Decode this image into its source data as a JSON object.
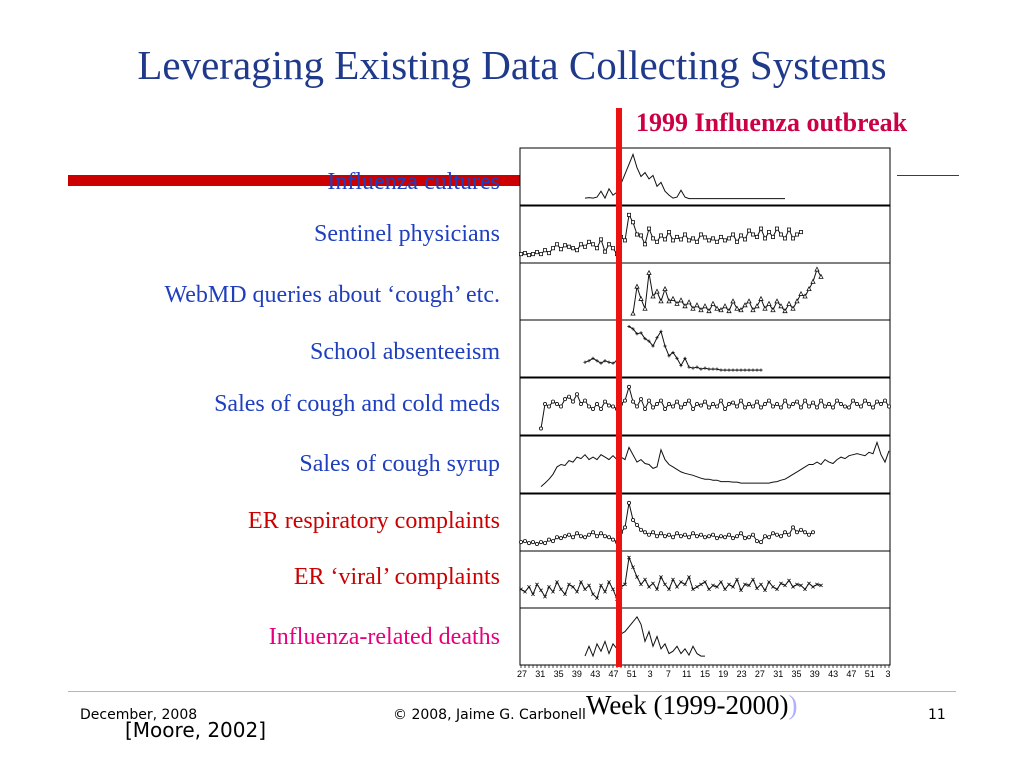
{
  "slide": {
    "title": "Leveraging Existing Data Collecting Systems",
    "outbreak_label": "1999 Influenza outbreak",
    "footer_date": "December, 2008",
    "footer_copyright": "© 2008, Jaime G. Carbonell",
    "slide_number": "11",
    "citation": "[Moore, 2002]",
    "colors": {
      "title": "#1f3a8a",
      "label_blue": "#1f3fbf",
      "label_red": "#cc0000",
      "label_magenta": "#e6007e",
      "outbreak_line": "#ee1111",
      "accent": "#cc0000"
    }
  },
  "chart_data": {
    "type": "line",
    "xlabel": "Week (1999-2000)",
    "x_ticks": [
      "27",
      "31",
      "35",
      "39",
      "43",
      "47",
      "51",
      "3",
      "7",
      "11",
      "15",
      "19",
      "23",
      "27",
      "31",
      "35",
      "39",
      "43",
      "47",
      "51",
      "3"
    ],
    "outbreak_week_index": 24.5,
    "x_count": 93,
    "series": [
      {
        "name": "Influenza cultures",
        "color_key": "label_blue",
        "markers": "none",
        "values": [
          null,
          null,
          null,
          null,
          null,
          null,
          null,
          null,
          null,
          null,
          null,
          null,
          null,
          null,
          null,
          null,
          0.06,
          0.07,
          0.06,
          0.08,
          0.2,
          0.06,
          0.25,
          0.12,
          0.18,
          0.35,
          0.55,
          0.75,
          0.95,
          0.68,
          0.5,
          0.58,
          0.45,
          0.52,
          0.3,
          0.38,
          0.2,
          0.12,
          0.06,
          0.08,
          0.22,
          0.08,
          0.05,
          0.05,
          0.05,
          0.05,
          0.05,
          0.05,
          0.05,
          0.05,
          0.05,
          0.05,
          0.05,
          0.05,
          0.05,
          0.05,
          0.05,
          0.05,
          0.05,
          0.05,
          0.05,
          0.05,
          0.05,
          0.05,
          0.05,
          0.05,
          0.05
        ]
      },
      {
        "name": "Sentinel physicians",
        "color_key": "label_blue",
        "markers": "square",
        "values": [
          0.1,
          0.12,
          0.08,
          0.1,
          0.14,
          0.1,
          0.18,
          0.12,
          0.22,
          0.3,
          0.2,
          0.28,
          0.25,
          0.22,
          0.18,
          0.3,
          0.25,
          0.35,
          0.3,
          0.22,
          0.4,
          0.15,
          0.3,
          0.22,
          0.1,
          0.45,
          0.38,
          0.9,
          0.75,
          0.5,
          0.48,
          0.3,
          0.62,
          0.42,
          0.35,
          0.48,
          0.4,
          0.55,
          0.38,
          0.45,
          0.4,
          0.5,
          0.38,
          0.42,
          0.35,
          0.5,
          0.44,
          0.38,
          0.42,
          0.35,
          0.45,
          0.38,
          0.42,
          0.5,
          0.35,
          0.48,
          0.4,
          0.58,
          0.5,
          0.45,
          0.62,
          0.42,
          0.55,
          0.45,
          0.62,
          0.5,
          0.42,
          0.6,
          0.42,
          0.5,
          0.55
        ]
      },
      {
        "name": "WebMD queries about ‘cough’ etc.",
        "color_key": "label_blue",
        "markers": "triangle",
        "values": [
          null,
          null,
          null,
          null,
          null,
          null,
          null,
          null,
          null,
          null,
          null,
          null,
          null,
          null,
          null,
          null,
          null,
          null,
          null,
          null,
          null,
          null,
          null,
          null,
          null,
          null,
          null,
          null,
          0.05,
          0.6,
          0.35,
          0.15,
          0.88,
          0.4,
          0.5,
          0.3,
          0.55,
          0.3,
          0.35,
          0.25,
          0.32,
          0.2,
          0.28,
          0.15,
          0.22,
          0.12,
          0.2,
          0.1,
          0.25,
          0.15,
          0.12,
          0.2,
          0.1,
          0.3,
          0.15,
          0.12,
          0.22,
          0.3,
          0.12,
          0.2,
          0.35,
          0.15,
          0.25,
          0.12,
          0.3,
          0.2,
          0.1,
          0.25,
          0.15,
          0.3,
          0.45,
          0.4,
          0.55,
          0.7,
          0.95,
          0.8
        ]
      },
      {
        "name": "School absenteeism",
        "color_key": "label_blue",
        "markers": "plus",
        "values": [
          null,
          null,
          null,
          null,
          null,
          null,
          null,
          null,
          null,
          null,
          null,
          null,
          null,
          null,
          null,
          null,
          0.22,
          0.25,
          0.3,
          0.25,
          0.2,
          0.25,
          0.22,
          0.2,
          0.25,
          null,
          null,
          0.95,
          0.9,
          0.8,
          0.82,
          0.7,
          0.65,
          0.55,
          0.72,
          0.85,
          0.55,
          0.35,
          0.42,
          0.3,
          0.15,
          0.3,
          0.12,
          0.1,
          0.12,
          0.08,
          0.1,
          0.08,
          0.08,
          0.08,
          0.06,
          0.06,
          0.06,
          0.06,
          0.06,
          0.06,
          0.06,
          0.06,
          0.06,
          0.06,
          0.06
        ]
      },
      {
        "name": "Sales of cough and cold meds",
        "color_key": "label_blue",
        "markers": "circle",
        "values": [
          null,
          null,
          null,
          null,
          null,
          0.05,
          0.55,
          0.5,
          0.6,
          0.55,
          0.5,
          0.65,
          0.7,
          0.6,
          0.75,
          0.55,
          0.62,
          0.5,
          0.45,
          0.55,
          0.45,
          0.6,
          0.52,
          0.5,
          0.45,
          0.55,
          0.62,
          0.9,
          0.6,
          0.5,
          0.65,
          0.45,
          0.62,
          0.48,
          0.55,
          0.62,
          0.45,
          0.55,
          0.5,
          0.6,
          0.48,
          0.55,
          0.62,
          0.45,
          0.55,
          0.52,
          0.6,
          0.48,
          0.55,
          0.5,
          0.62,
          0.45,
          0.55,
          0.58,
          0.5,
          0.62,
          0.48,
          0.55,
          0.5,
          0.6,
          0.48,
          0.55,
          0.62,
          0.5,
          0.55,
          0.48,
          0.62,
          0.5,
          0.55,
          0.6,
          0.48,
          0.62,
          0.5,
          0.58,
          0.48,
          0.62,
          0.5,
          0.55,
          0.48,
          0.62,
          0.55,
          0.5,
          0.48,
          0.62,
          0.55,
          0.5,
          0.62,
          0.55,
          0.48,
          0.6,
          0.55,
          0.62,
          0.5
        ]
      },
      {
        "name": "Sales of cough syrup",
        "color_key": "label_blue",
        "markers": "none",
        "values": [
          null,
          null,
          null,
          null,
          null,
          0.05,
          0.12,
          0.2,
          0.3,
          0.45,
          0.5,
          0.48,
          0.58,
          0.55,
          0.65,
          0.62,
          0.7,
          0.6,
          0.65,
          0.6,
          0.7,
          0.65,
          0.6,
          0.68,
          0.6,
          0.65,
          0.6,
          0.85,
          0.7,
          0.55,
          0.6,
          0.52,
          0.5,
          0.42,
          0.45,
          0.8,
          0.6,
          0.5,
          0.45,
          0.4,
          0.35,
          0.32,
          0.3,
          0.28,
          0.25,
          0.22,
          0.2,
          0.2,
          0.18,
          0.18,
          0.15,
          0.15,
          0.15,
          0.14,
          0.14,
          0.12,
          0.12,
          0.12,
          0.12,
          0.12,
          0.12,
          0.12,
          0.12,
          0.14,
          0.15,
          0.18,
          0.2,
          0.25,
          0.3,
          0.35,
          0.4,
          0.45,
          0.5,
          0.5,
          0.55,
          0.5,
          0.6,
          0.55,
          0.52,
          0.6,
          0.65,
          0.62,
          0.68,
          0.7,
          0.72,
          0.7,
          0.68,
          0.75,
          0.72,
          0.95,
          0.7,
          0.55,
          0.78
        ]
      },
      {
        "name": "ER respiratory complaints",
        "color_key": "label_red",
        "markers": "circle",
        "values": [
          0.1,
          0.12,
          0.08,
          0.1,
          0.06,
          0.1,
          0.08,
          0.15,
          0.12,
          0.2,
          0.18,
          0.22,
          0.25,
          0.2,
          0.28,
          0.22,
          0.2,
          0.25,
          0.3,
          0.22,
          0.28,
          0.22,
          0.2,
          0.15,
          0.1,
          0.3,
          0.4,
          0.9,
          0.55,
          0.45,
          0.35,
          0.3,
          0.25,
          0.3,
          0.22,
          0.28,
          0.22,
          0.25,
          0.2,
          0.28,
          0.22,
          0.25,
          0.2,
          0.28,
          0.22,
          0.25,
          0.2,
          0.22,
          0.25,
          0.18,
          0.22,
          0.2,
          0.25,
          0.18,
          0.22,
          0.28,
          0.18,
          0.2,
          0.25,
          0.12,
          0.1,
          0.22,
          0.2,
          0.28,
          0.25,
          0.22,
          0.3,
          0.25,
          0.4,
          0.3,
          0.35,
          0.3,
          0.25,
          0.3
        ]
      },
      {
        "name": "ER ‘viral’ complaints",
        "color_key": "label_red",
        "markers": "star",
        "values": [
          0.3,
          0.25,
          0.35,
          0.2,
          0.4,
          0.28,
          0.15,
          0.35,
          0.25,
          0.45,
          0.3,
          0.2,
          0.4,
          0.35,
          0.25,
          0.45,
          0.3,
          0.38,
          0.2,
          0.12,
          0.38,
          0.25,
          0.45,
          0.3,
          0.1,
          0.35,
          0.4,
          0.95,
          0.75,
          0.55,
          0.4,
          0.5,
          0.35,
          0.42,
          0.3,
          0.55,
          0.4,
          0.3,
          0.5,
          0.35,
          0.45,
          0.4,
          0.55,
          0.3,
          0.35,
          0.4,
          0.45,
          0.3,
          0.38,
          0.35,
          0.45,
          0.3,
          0.4,
          0.35,
          0.5,
          0.28,
          0.4,
          0.38,
          0.5,
          0.32,
          0.4,
          0.28,
          0.45,
          0.35,
          0.3,
          0.42,
          0.38,
          0.48,
          0.35,
          0.4,
          0.38,
          0.3,
          0.42,
          0.35,
          0.4,
          0.38
        ]
      },
      {
        "name": "Influenza-related deaths",
        "color_key": "label_magenta",
        "markers": "none",
        "values": [
          null,
          null,
          null,
          null,
          null,
          null,
          null,
          null,
          null,
          null,
          null,
          null,
          null,
          null,
          null,
          null,
          0.1,
          0.3,
          0.1,
          0.35,
          0.2,
          0.4,
          0.15,
          0.35,
          0.25,
          0.55,
          0.6,
          0.7,
          0.8,
          0.9,
          0.75,
          0.4,
          0.6,
          0.3,
          0.5,
          0.25,
          0.35,
          0.15,
          0.2,
          0.3,
          0.15,
          0.25,
          0.12,
          0.3,
          0.15,
          0.1,
          0.1
        ]
      }
    ],
    "annotations": [
      "1999 Influenza outbreak"
    ],
    "grid": false
  }
}
